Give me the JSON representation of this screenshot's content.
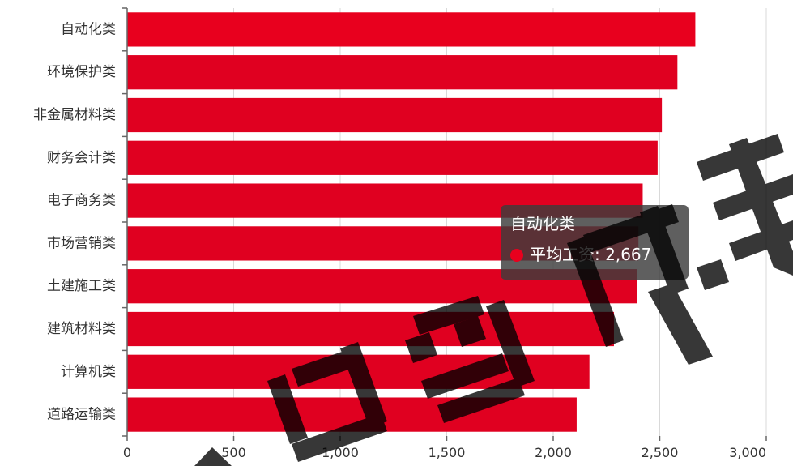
{
  "chart_data": {
    "type": "bar",
    "orientation": "horizontal",
    "categories": [
      "自动化类",
      "环境保护类",
      "非金属材料类",
      "财务会计类",
      "电子商务类",
      "市场营销类",
      "土建施工类",
      "建筑材料类",
      "计算机类",
      "道路运输类"
    ],
    "series": [
      {
        "name": "平均工资",
        "values": [
          2667,
          2583,
          2510,
          2490,
          2420,
          2400,
          2395,
          2285,
          2170,
          2110
        ]
      }
    ],
    "xlim": [
      0,
      3000
    ],
    "xticks": [
      0,
      500,
      1000,
      1500,
      2000,
      2500,
      3000
    ],
    "xtick_labels": [
      "0",
      "500",
      "1,000",
      "1,500",
      "2,000",
      "2,500",
      "3,000"
    ],
    "grid": true,
    "title": "",
    "xlabel": "",
    "ylabel": "",
    "bar_color": "#e00020",
    "highlight_color": "#e8001e"
  },
  "tooltip": {
    "title": "自动化类",
    "series_label": "平均工资",
    "separator": ": ",
    "value": "2,667",
    "dot_color": "#e8001e"
  }
}
